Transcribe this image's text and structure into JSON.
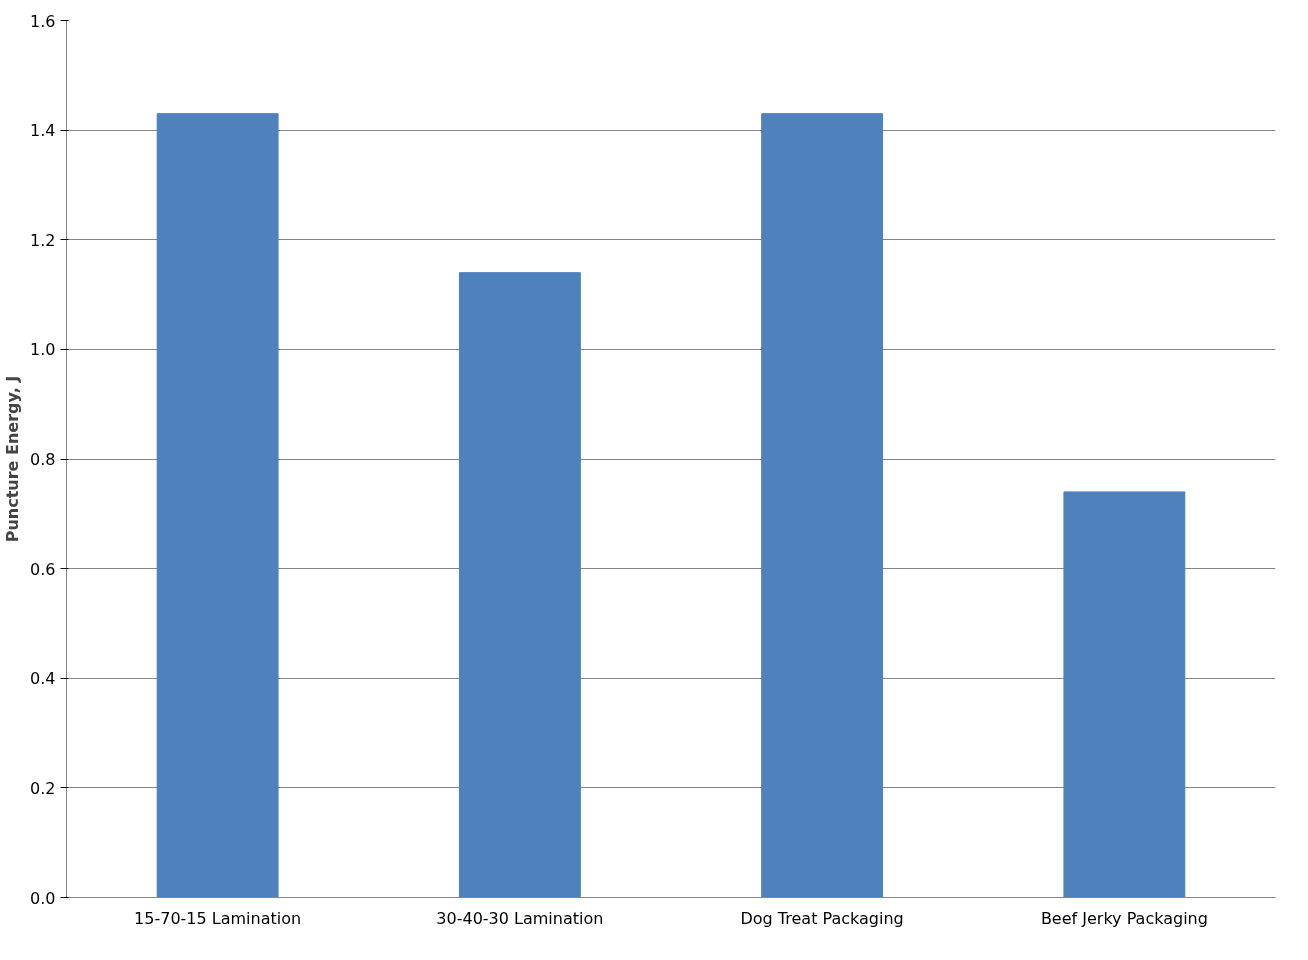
{
  "chart_data": {
    "type": "bar",
    "ylabel": "Puncture Energy, J",
    "categories": [
      "15-70-15 Lamination",
      "30-40-30 Lamination",
      "Dog Treat Packaging",
      "Beef Jerky Packaging"
    ],
    "values": [
      1.43,
      1.14,
      1.43,
      0.74
    ],
    "color": "#4f81bd",
    "ylim": [
      0,
      1.6
    ],
    "yticks": [
      {
        "value": 0,
        "label": "0.0"
      },
      {
        "value": 0.2,
        "label": "0.2"
      },
      {
        "value": 0.4,
        "label": "0.4"
      },
      {
        "value": 0.6,
        "label": "0.6"
      },
      {
        "value": 0.8,
        "label": "0.8"
      },
      {
        "value": 1.0,
        "label": "1.0"
      },
      {
        "value": 1.2,
        "label": "1.2"
      },
      {
        "value": 1.4,
        "label": "1.4"
      },
      {
        "value": 1.6,
        "label": "1.6"
      }
    ],
    "grid": "y"
  }
}
